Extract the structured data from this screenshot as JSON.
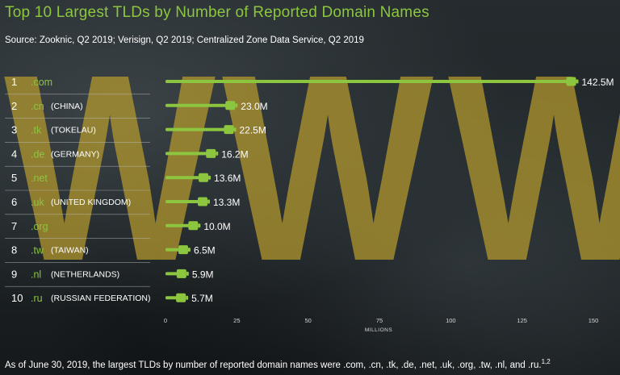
{
  "title": "Top 10 Largest TLDs by Number of Reported Domain Names",
  "source": "Source: Zooknic, Q2 2019; Verisign, Q2 2019; Centralized Zone Data Service, Q2 2019",
  "footnote": {
    "text": "As of June 30, 2019, the largest TLDs by number of reported domain names were .com, .cn, .tk, .de, .net, .uk, .org, .tw, .nl, and .ru.",
    "superscript": "1,2"
  },
  "background_watermark": "WWW",
  "colors": {
    "accent": "#8cc63f",
    "watermark": "#b69a2e",
    "background": "#1c2123"
  },
  "chart_data": {
    "type": "bar",
    "orientation": "horizontal",
    "xlabel": "MILLIONS",
    "xlim": [
      0,
      150
    ],
    "xticks": [
      "0",
      "25",
      "50",
      "75",
      "100",
      "125",
      "150"
    ],
    "grid": false,
    "rows": [
      {
        "rank": "1",
        "tld": ".com",
        "country": "",
        "value": 142.5,
        "label": "142.5M"
      },
      {
        "rank": "2",
        "tld": ".cn",
        "country": "(CHINA)",
        "value": 23.0,
        "label": "23.0M"
      },
      {
        "rank": "3",
        "tld": ".tk",
        "country": "(TOKELAU)",
        "value": 22.5,
        "label": "22.5M"
      },
      {
        "rank": "4",
        "tld": ".de",
        "country": "(GERMANY)",
        "value": 16.2,
        "label": "16.2M"
      },
      {
        "rank": "5",
        "tld": ".net",
        "country": "",
        "value": 13.6,
        "label": "13.6M"
      },
      {
        "rank": "6",
        "tld": ".uk",
        "country": "(UNITED KINGDOM)",
        "value": 13.3,
        "label": "13.3M"
      },
      {
        "rank": "7",
        "tld": ".org",
        "country": "",
        "value": 10.0,
        "label": "10.0M"
      },
      {
        "rank": "8",
        "tld": ".tw",
        "country": "(TAIWAN)",
        "value": 6.5,
        "label": "6.5M"
      },
      {
        "rank": "9",
        "tld": ".nl",
        "country": "(NETHERLANDS)",
        "value": 5.9,
        "label": "5.9M"
      },
      {
        "rank": "10",
        "tld": ".ru",
        "country": "(RUSSIAN FEDERATION)",
        "value": 5.7,
        "label": "5.7M"
      }
    ]
  }
}
